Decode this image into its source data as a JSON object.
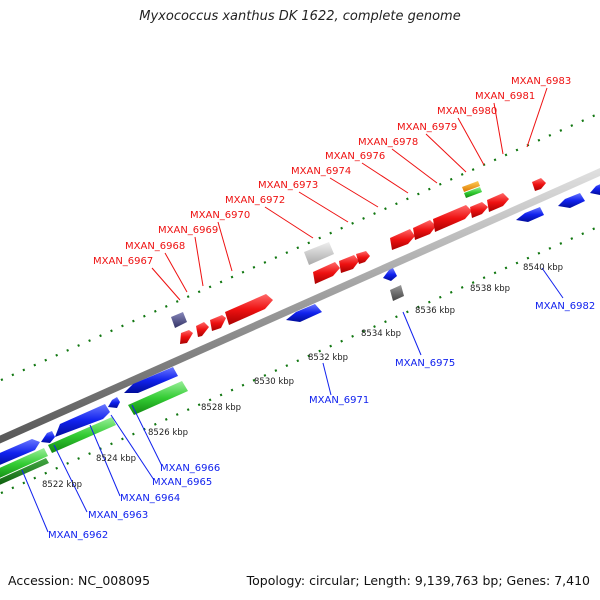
{
  "title": "Myxococcus xanthus DK 1622, complete genome",
  "footer": {
    "accession": "Accession: NC_008095",
    "summary": "Topology: circular; Length: 9,139,763 bp; Genes: 7,410"
  },
  "colors": {
    "forward_gene": "#ee1111",
    "reverse_gene": "#1122ee",
    "rna": "#33cc33",
    "backbone": "#999999",
    "tick": "#117711"
  },
  "ruler": [
    "8522 kbp",
    "8524 kbp",
    "8526 kbp",
    "8528 kbp",
    "8530 kbp",
    "8532 kbp",
    "8534 kbp",
    "8536 kbp",
    "8538 kbp",
    "8540 kbp"
  ],
  "forward_labels": [
    "MXAN_6967",
    "MXAN_6968",
    "MXAN_6969",
    "MXAN_6970",
    "MXAN_6972",
    "MXAN_6973",
    "MXAN_6974",
    "MXAN_6976",
    "MXAN_6978",
    "MXAN_6979",
    "MXAN_6980",
    "MXAN_6981",
    "MXAN_6983"
  ],
  "reverse_labels": [
    "MXAN_6962",
    "MXAN_6963",
    "MXAN_6964",
    "MXAN_6965",
    "MXAN_6966",
    "MXAN_6971",
    "MXAN_6975",
    "MXAN_6982"
  ]
}
